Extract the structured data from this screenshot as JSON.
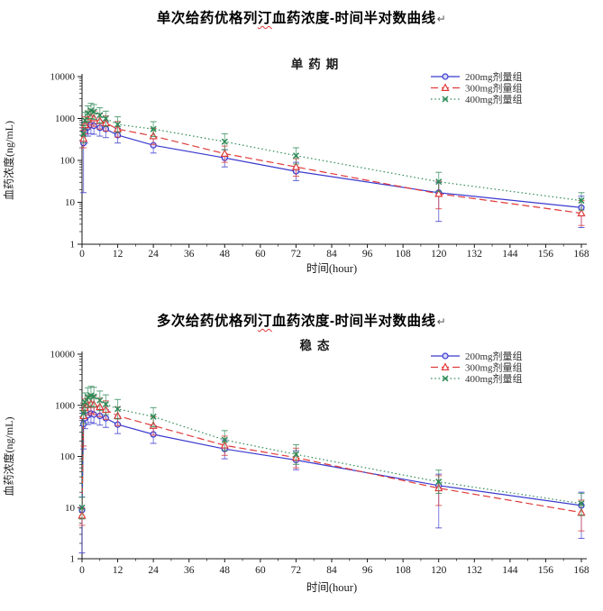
{
  "page": {
    "background": "#ffffff"
  },
  "doc": {
    "title1": {
      "pre": "单次给药优格列",
      "wavy": "汀",
      "post": "血药浓度-时间半对数曲线",
      "return_mark": "↵"
    },
    "title2": {
      "pre": "多次给药优格列",
      "wavy": "汀",
      "post": "血药浓度-时间半对数曲线",
      "return_mark": "↵"
    }
  },
  "colors": {
    "series_200mg": "#3939cf",
    "series_300mg": "#e03a3a",
    "series_400mg": "#2e8b57",
    "axis": "#1a1a1a",
    "text": "#1a1a1a",
    "spellcheck_wavy": "#e03a3a"
  },
  "chart_data": [
    {
      "type": "line",
      "title": "单药期",
      "xlabel": "时间(hour)",
      "ylabel": "血药浓度(ng/mL)",
      "yscale": "log",
      "xlim": [
        0,
        168
      ],
      "ylim": [
        1,
        10000
      ],
      "xticks": [
        0,
        12,
        24,
        36,
        48,
        60,
        72,
        84,
        96,
        108,
        120,
        132,
        144,
        156,
        168
      ],
      "yticks": [
        1,
        10,
        100,
        1000,
        10000
      ],
      "ytick_labels": [
        "1",
        "10",
        "100",
        "1000",
        "10000"
      ],
      "grid": false,
      "legend_position": "top-right",
      "x": [
        0.5,
        1,
        2,
        3,
        4,
        6,
        8,
        12,
        24,
        48,
        72,
        120,
        168
      ],
      "series": [
        {
          "name": "200mg剂量组",
          "color": "#3939cf",
          "line": "solid",
          "marker": "circle",
          "values": [
            260,
            480,
            620,
            700,
            670,
            600,
            560,
            400,
            230,
            115,
            55,
            17,
            7.5
          ],
          "err": [
            [
              17,
              600
            ],
            [
              260,
              820
            ],
            [
              380,
              920
            ],
            [
              430,
              1050
            ],
            [
              420,
              980
            ],
            [
              380,
              880
            ],
            [
              350,
              820
            ],
            [
              260,
              580
            ],
            [
              150,
              340
            ],
            [
              70,
              180
            ],
            [
              33,
              90
            ],
            [
              3.5,
              30
            ],
            [
              2.5,
              14
            ]
          ]
        },
        {
          "name": "300mg剂量组",
          "color": "#e03a3a",
          "line": "dash",
          "marker": "triangle",
          "values": [
            330,
            700,
            950,
            1080,
            1020,
            880,
            780,
            560,
            380,
            145,
            70,
            16,
            5.5
          ],
          "err": [
            [
              200,
              520
            ],
            [
              430,
              1100
            ],
            [
              600,
              1450
            ],
            [
              700,
              1600
            ],
            [
              650,
              1500
            ],
            [
              560,
              1300
            ],
            [
              500,
              1150
            ],
            [
              360,
              850
            ],
            [
              240,
              580
            ],
            [
              90,
              220
            ],
            [
              42,
              110
            ],
            [
              7,
              32
            ],
            [
              2.8,
              11
            ]
          ]
        },
        {
          "name": "400mg剂量组",
          "color": "#2e8b57",
          "line": "dot",
          "marker": "x",
          "values": [
            430,
            900,
            1350,
            1550,
            1450,
            1200,
            1000,
            720,
            560,
            280,
            130,
            31,
            11
          ],
          "err": [
            [
              260,
              680
            ],
            [
              560,
              1400
            ],
            [
              850,
              2000
            ],
            [
              1000,
              2300
            ],
            [
              950,
              2150
            ],
            [
              780,
              1800
            ],
            [
              650,
              1500
            ],
            [
              470,
              1100
            ],
            [
              370,
              840
            ],
            [
              180,
              430
            ],
            [
              82,
              200
            ],
            [
              18,
              52
            ],
            [
              6.5,
              17
            ]
          ]
        }
      ]
    },
    {
      "type": "line",
      "title": "稳态",
      "xlabel": "时间(hour)",
      "ylabel": "血药浓度(ng/mL)",
      "yscale": "log",
      "xlim": [
        0,
        168
      ],
      "ylim": [
        1,
        10000
      ],
      "xticks": [
        0,
        12,
        24,
        36,
        48,
        60,
        72,
        84,
        96,
        108,
        120,
        132,
        144,
        156,
        168
      ],
      "yticks": [
        1,
        10,
        100,
        1000,
        10000
      ],
      "ytick_labels": [
        "1",
        "10",
        "100",
        "1000",
        "10000"
      ],
      "grid": false,
      "legend_position": "top-right",
      "x": [
        0,
        0.5,
        1,
        2,
        3,
        4,
        6,
        8,
        12,
        24,
        48,
        72,
        120,
        168
      ],
      "series": [
        {
          "name": "200mg剂量组",
          "color": "#3939cf",
          "line": "solid",
          "marker": "circle",
          "values": [
            9,
            430,
            560,
            640,
            690,
            660,
            620,
            560,
            420,
            270,
            140,
            85,
            27,
            11
          ],
          "err": [
            [
              1.3,
              16
            ],
            [
              140,
              700
            ],
            [
              350,
              850
            ],
            [
              420,
              950
            ],
            [
              460,
              1000
            ],
            [
              440,
              960
            ],
            [
              410,
              900
            ],
            [
              370,
              820
            ],
            [
              280,
              600
            ],
            [
              180,
              400
            ],
            [
              90,
              210
            ],
            [
              55,
              130
            ],
            [
              4,
              45
            ],
            [
              2.5,
              20
            ]
          ]
        },
        {
          "name": "300mg剂量组",
          "color": "#e03a3a",
          "line": "dash",
          "marker": "triangle",
          "values": [
            7,
            620,
            900,
            1020,
            1080,
            1030,
            930,
            820,
            620,
            400,
            165,
            95,
            24,
            8
          ],
          "err": [
            [
              4.5,
              10
            ],
            [
              160,
              1100
            ],
            [
              560,
              1350
            ],
            [
              650,
              1500
            ],
            [
              700,
              1600
            ],
            [
              660,
              1520
            ],
            [
              600,
              1380
            ],
            [
              530,
              1220
            ],
            [
              400,
              920
            ],
            [
              260,
              600
            ],
            [
              105,
              250
            ],
            [
              60,
              145
            ],
            [
              11,
              42
            ],
            [
              3.5,
              14
            ]
          ]
        },
        {
          "name": "400mg剂量组",
          "color": "#2e8b57",
          "line": "dot",
          "marker": "x",
          "values": [
            10,
            700,
            1150,
            1450,
            1550,
            1480,
            1250,
            1050,
            850,
            600,
            210,
            110,
            32,
            12
          ],
          "err": [
            [
              6,
              16
            ],
            [
              440,
              1100
            ],
            [
              720,
              1750
            ],
            [
              900,
              2200
            ],
            [
              980,
              2350
            ],
            [
              930,
              2250
            ],
            [
              790,
              1900
            ],
            [
              660,
              1600
            ],
            [
              540,
              1300
            ],
            [
              380,
              900
            ],
            [
              130,
              320
            ],
            [
              70,
              170
            ],
            [
              19,
              54
            ],
            [
              7,
              19
            ]
          ]
        }
      ]
    }
  ]
}
